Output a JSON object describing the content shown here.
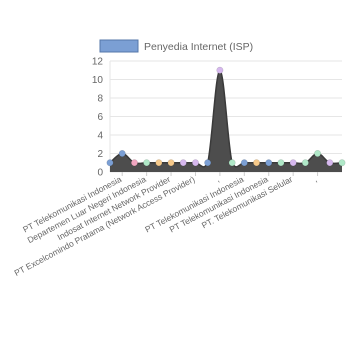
{
  "chart_data": {
    "type": "area",
    "legend": {
      "label": "Penyedia Internet (ISP)",
      "position": "top",
      "swatch_color": "#7b9fd4"
    },
    "colors": {
      "fill": "#4d4d4d",
      "line": "#3a3a3a",
      "grid": "#e6e6e6"
    },
    "ylim": [
      0,
      12
    ],
    "yticks": [
      0,
      2,
      4,
      6,
      8,
      10,
      12
    ],
    "point_colors": [
      "#7b9fd4",
      "#7b9fd4",
      "#f1a6c0",
      "#b0e8c8",
      "#f6c98a",
      "#f6c98a",
      "#d6b8ee",
      "#d6b8ee",
      "#7b9fd4",
      "#d6b8ee",
      "#b0e8c8",
      "#7b9fd4",
      "#f6c98a",
      "#7b9fd4",
      "#b0e8c8",
      "#d6b8ee",
      "#b0e8c8",
      "#b0e8c8",
      "#d6b8ee",
      "#b0e8c8"
    ],
    "values": [
      1,
      2,
      1,
      1,
      1,
      1,
      1,
      1,
      1,
      11,
      1,
      1,
      1,
      1,
      1,
      1,
      1,
      2,
      1,
      1
    ],
    "tick_labels": [
      {
        "index": 1,
        "text": "PT Telekomunikasi Indonesia"
      },
      {
        "index": 3,
        "text": "Departemen Luar Negeri Indonesia"
      },
      {
        "index": 5,
        "text": "Indosat Internet Network Provider"
      },
      {
        "index": 7,
        "text": "PT Excelcomindo Pratama (Network Access Provider)"
      },
      {
        "index": 9,
        "text": ","
      },
      {
        "index": 11,
        "text": "PT Telekomunikasi Indonesia"
      },
      {
        "index": 13,
        "text": "PT Telekomunikasi Indonesia"
      },
      {
        "index": 15,
        "text": "PT. Telekomunikasi Selular"
      },
      {
        "index": 17,
        "text": ","
      }
    ]
  }
}
